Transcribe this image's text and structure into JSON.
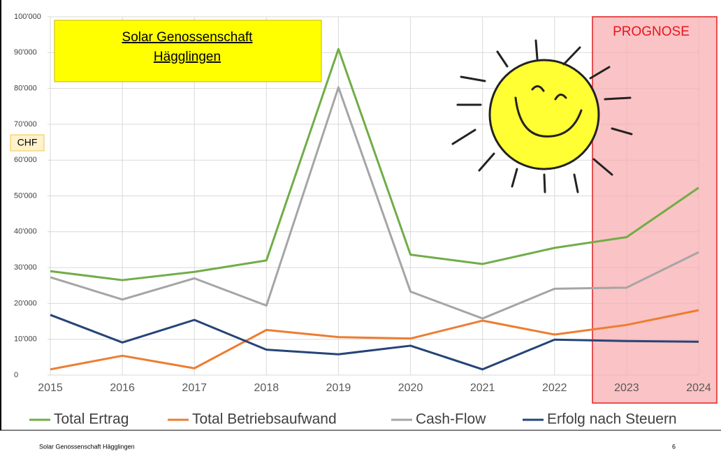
{
  "chart_data": {
    "type": "line",
    "title": [
      "Solar Genossenschaft",
      "Hägglingen"
    ],
    "ylabel": "CHF",
    "annotation": "PROGNOSE",
    "x": [
      2015,
      2016,
      2017,
      2018,
      2019,
      2020,
      2021,
      2022,
      2023,
      2024
    ],
    "xlim": [
      2015,
      2024
    ],
    "xticks": [
      2015,
      2016,
      2017,
      2018,
      2019,
      2020,
      2021,
      2022,
      2023,
      2024
    ],
    "ylim": [
      0,
      100000
    ],
    "yticks": [
      0,
      {
        "value": 10000,
        "label": "10'000"
      },
      {
        "value": 20000,
        "label": "20'000"
      },
      {
        "value": 30000,
        "label": "30'000"
      },
      {
        "value": 40000,
        "label": "40'000"
      },
      {
        "value": 50000,
        "label": "50'000"
      },
      {
        "value": 60000,
        "label": "60'000"
      },
      {
        "value": 70000,
        "label": "70'000"
      },
      {
        "value": 80000,
        "label": "80'000"
      },
      {
        "value": 90000,
        "label": "90'000"
      },
      {
        "value": 100000,
        "label": "100'000"
      }
    ],
    "grid": true,
    "legend": "bottom",
    "series": [
      {
        "name": "Total Ertrag",
        "color": "#70ad47",
        "values": [
          29000,
          26500,
          28800,
          32000,
          91000,
          33600,
          31000,
          35500,
          38500,
          52300
        ]
      },
      {
        "name": "Total Betriebsaufwand",
        "color": "#ed7d31",
        "values": [
          1600,
          5400,
          1900,
          12600,
          10600,
          10200,
          15200,
          11300,
          14000,
          18100
        ]
      },
      {
        "name": "Cash-Flow",
        "color": "#a5a5a5",
        "values": [
          27300,
          21100,
          27000,
          19400,
          80300,
          23300,
          15800,
          24100,
          24400,
          34300
        ]
      },
      {
        "name": "Erfolg nach Steuern",
        "color": "#264478",
        "values": [
          16800,
          9100,
          15400,
          7100,
          5800,
          8200,
          1600,
          9900,
          9500,
          9300
        ]
      }
    ]
  },
  "footer": {
    "text": "Solar Genossenschaft Hägglingen",
    "page": "6"
  }
}
